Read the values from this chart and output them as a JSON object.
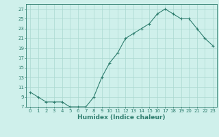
{
  "x": [
    0,
    1,
    2,
    3,
    4,
    5,
    6,
    7,
    8,
    9,
    10,
    11,
    12,
    13,
    14,
    15,
    16,
    17,
    18,
    19,
    20,
    21,
    22,
    23
  ],
  "y": [
    10,
    9,
    8,
    8,
    8,
    7,
    7,
    7,
    9,
    13,
    16,
    18,
    21,
    22,
    23,
    24,
    26,
    27,
    26,
    25,
    25,
    23,
    21,
    19.5
  ],
  "line_color": "#2e7d6e",
  "marker": "+",
  "marker_size": 3,
  "marker_linewidth": 0.8,
  "line_width": 0.8,
  "bg_color": "#cff0eb",
  "grid_color": "#aad8d0",
  "xlabel": "Humidex (Indice chaleur)",
  "ylim": [
    7,
    28
  ],
  "xlim": [
    -0.5,
    23.5
  ],
  "yticks": [
    7,
    9,
    11,
    13,
    15,
    17,
    19,
    21,
    23,
    25,
    27
  ],
  "xticks": [
    0,
    1,
    2,
    3,
    4,
    5,
    6,
    7,
    8,
    9,
    10,
    11,
    12,
    13,
    14,
    15,
    16,
    17,
    18,
    19,
    20,
    21,
    22,
    23
  ],
  "tick_fontsize": 5,
  "xlabel_fontsize": 6.5
}
